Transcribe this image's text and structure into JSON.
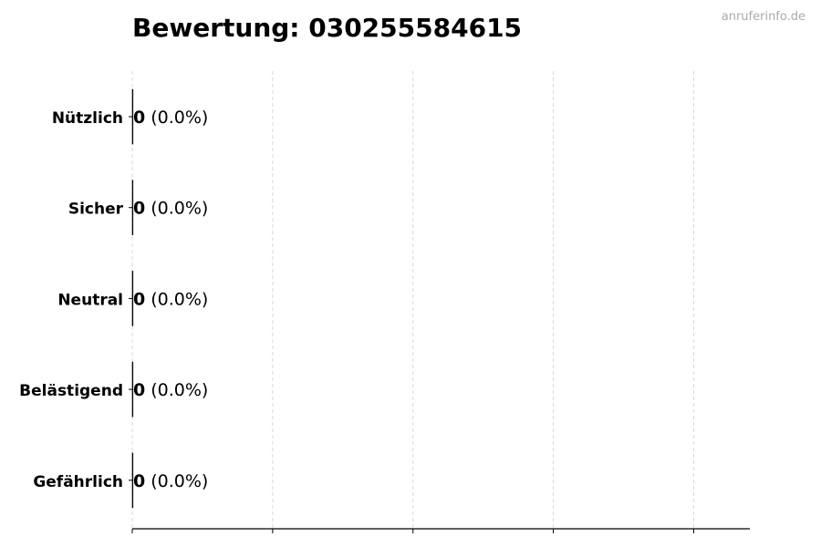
{
  "chart_data": {
    "type": "bar",
    "orientation": "horizontal",
    "title": "Bewertung: 030255584615",
    "watermark": "anruferinfo.de",
    "categories": [
      "Nützlich",
      "Sicher",
      "Neutral",
      "Belästigend",
      "Gefährlich"
    ],
    "values": [
      0,
      0,
      0,
      0,
      0
    ],
    "value_labels": [
      "0",
      "0",
      "0",
      "0",
      "0"
    ],
    "percent_labels": [
      "(0.0%)",
      "(0.0%)",
      "(0.0%)",
      "(0.0%)",
      "(0.0%)"
    ],
    "xlabel": "",
    "ylabel": "",
    "xlim": [
      0,
      4.4
    ],
    "xticks": [
      0,
      1,
      2,
      3,
      4
    ],
    "xtick_labels_shown": false,
    "grid": "x-dashed",
    "colors": {
      "grid": "#d9d9d9",
      "axis": "#000000",
      "watermark": "#aaaaaa"
    }
  }
}
